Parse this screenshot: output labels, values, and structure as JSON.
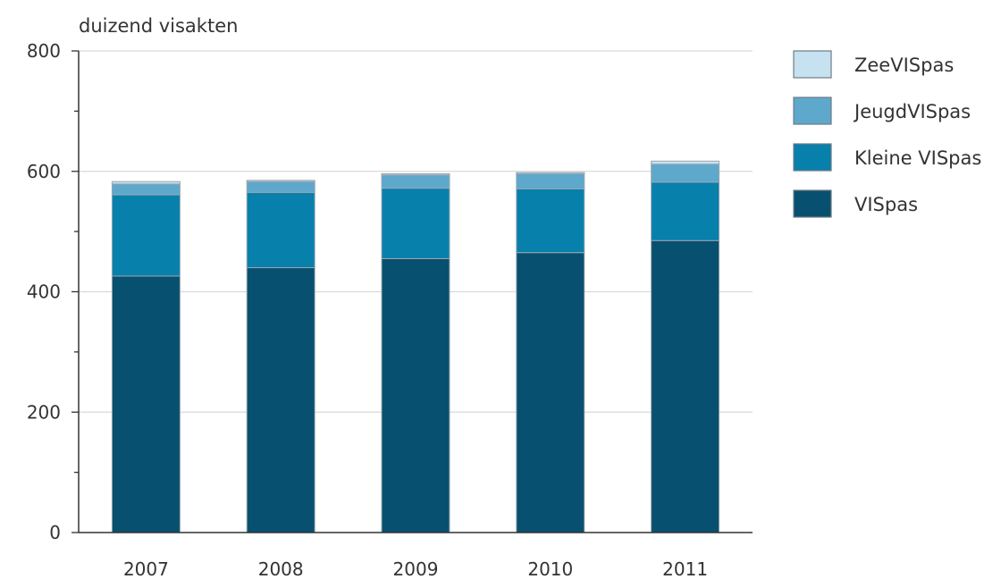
{
  "chart_data": {
    "type": "bar",
    "stacked": true,
    "unit_label": "duizend visakten",
    "categories": [
      "2007",
      "2008",
      "2009",
      "2010",
      "2011"
    ],
    "series": [
      {
        "name": "VISpas",
        "color": "#08506f",
        "values": [
          426,
          440,
          455,
          465,
          485
        ]
      },
      {
        "name": "Kleine VISpas",
        "color": "#0880ac",
        "values": [
          135,
          125,
          117,
          106,
          97
        ]
      },
      {
        "name": "JeugdVISpas",
        "color": "#5ea8cc",
        "values": [
          18,
          18,
          22,
          25,
          30
        ]
      },
      {
        "name": "ZeeVISpas",
        "color": "#c6e1f0",
        "values": [
          4,
          2,
          2,
          2,
          5
        ]
      }
    ],
    "legend_order": [
      "ZeeVISpas",
      "JeugdVISpas",
      "Kleine VISpas",
      "VISpas"
    ],
    "ylim": [
      0,
      800
    ],
    "yticks": [
      0,
      200,
      400,
      600,
      800
    ],
    "grid": true,
    "legend_position": "right"
  }
}
